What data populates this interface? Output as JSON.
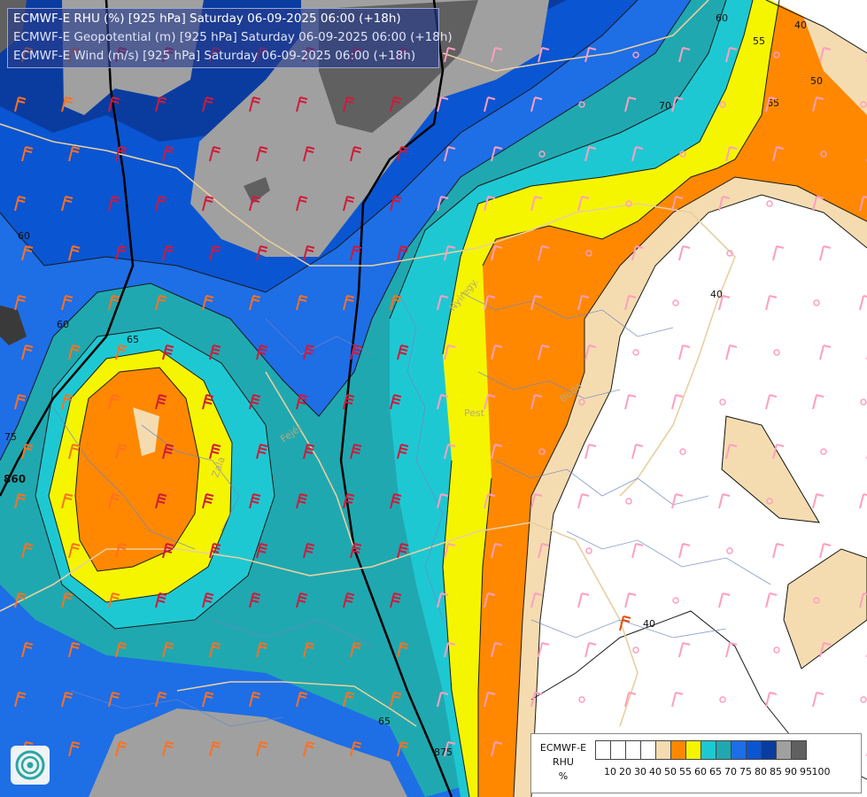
{
  "header": {
    "line1": "ECMWF-E RHU (%) [925 hPa] Saturday 06-09-2025 06:00 (+18h)",
    "line2": "ECMWF-E Geopotential (m) [925 hPa] Saturday 06-09-2025 06:00 (+18h)",
    "line3": "ECMWF-E Wind (m/s) [925 hPa] Saturday 06-09-2025 06:00 (+18h)"
  },
  "legend": {
    "title_line1": "ECMWF-E",
    "title_line2": "RHU",
    "title_line3": "%",
    "ticks": [
      "10",
      "20",
      "30",
      "40",
      "50",
      "55",
      "60",
      "65",
      "70",
      "75",
      "80",
      "85",
      "90",
      "95",
      "100"
    ],
    "colors": [
      "#ffffff",
      "#ffffff",
      "#ffffff",
      "#ffffff",
      "#f5dcb0",
      "#ff8800",
      "#f5f500",
      "#1ec8d2",
      "#20a8b0",
      "#1e6ee6",
      "#0a55d2",
      "#0a3ca0",
      "#a0a0a0",
      "#606060"
    ]
  },
  "contour_labels": [
    "60",
    "55",
    "40",
    "50",
    "65",
    "70",
    "60",
    "60",
    "65",
    "75",
    "860",
    "40",
    "40",
    "65",
    "875"
  ],
  "places": [
    "Nyíregy.",
    "Pest",
    "Buda",
    "Zala",
    "Fejér"
  ],
  "colors": {
    "rh_orange": "#ff8800",
    "rh_yellow": "#f5f500",
    "rh_cyan": "#1ec8d2",
    "rh_teal": "#20a8b0",
    "rh_blue": "#1e6ee6",
    "rh_darkblue": "#0a3ca0",
    "rh_grey": "#a0a0a0",
    "rh_darkgrey": "#606060",
    "rh_tan": "#f5dcb0",
    "barb_red": "#d01a3a",
    "barb_orange": "#ff7020",
    "barb_pink": "#ff9ec0"
  }
}
